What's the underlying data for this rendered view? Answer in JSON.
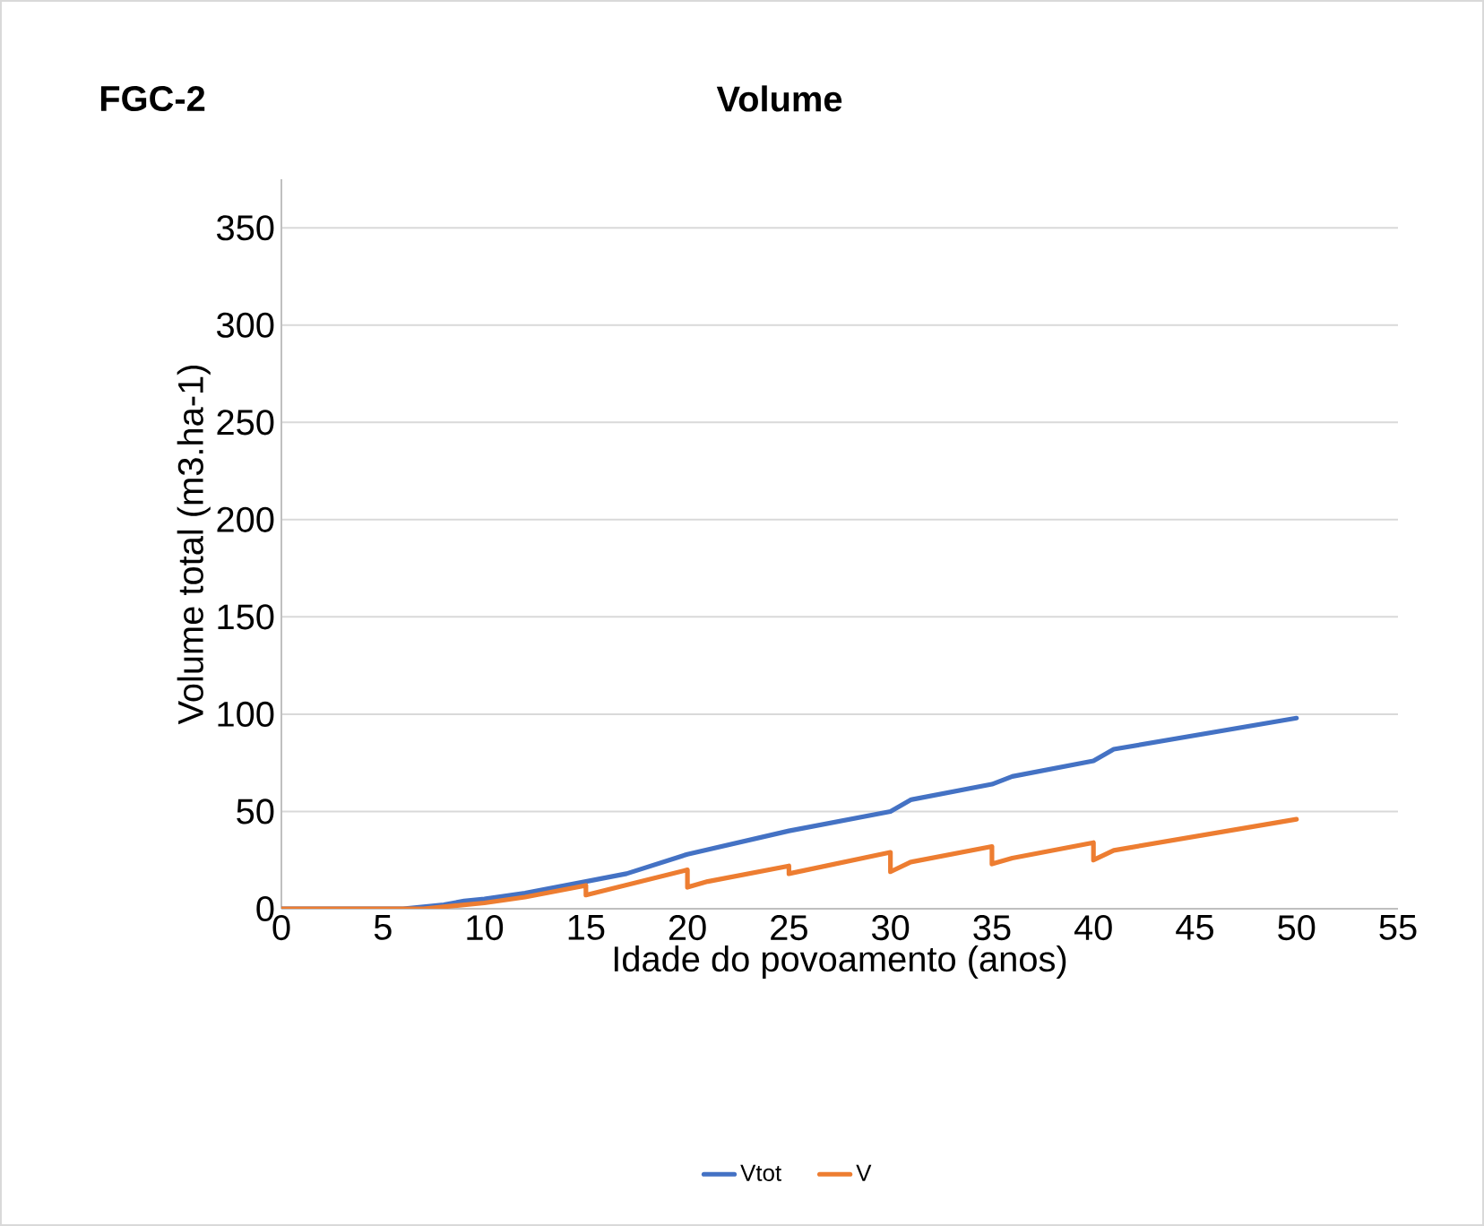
{
  "chart_data": {
    "type": "line",
    "title": "Volume",
    "annotations": [
      "FGC-2"
    ],
    "xlabel": "Idade do povoamento (anos)",
    "ylabel": "Volume total (m3.ha-1)",
    "xlim": [
      0,
      55
    ],
    "xticks": [
      0,
      5,
      10,
      15,
      20,
      25,
      30,
      35,
      40,
      45,
      50,
      55
    ],
    "ylim": [
      0,
      375
    ],
    "yticks": [
      0,
      50,
      100,
      150,
      200,
      250,
      300,
      350
    ],
    "grid": "y",
    "legend": "bottom",
    "marker": "none",
    "line_style": "solid",
    "series": [
      {
        "name": "Vtot",
        "color": "#4472c4",
        "x": [
          0,
          6,
          8,
          9,
          10,
          12,
          15,
          17,
          20,
          25,
          30,
          31,
          35,
          36,
          40,
          41,
          50
        ],
        "values": [
          0,
          0,
          2,
          4,
          5,
          8,
          14,
          18,
          28,
          40,
          50,
          56,
          64,
          68,
          76,
          82,
          98
        ]
      },
      {
        "name": "V",
        "color": "#ed7d31",
        "x": [
          0,
          7,
          8,
          10,
          12,
          15,
          15,
          20,
          20,
          21,
          25,
          25,
          30,
          30,
          31,
          35,
          35,
          36,
          40,
          40,
          41,
          50
        ],
        "values": [
          0,
          0,
          1,
          3,
          6,
          12,
          7,
          20,
          11,
          14,
          22,
          18,
          29,
          19,
          24,
          32,
          23,
          26,
          34,
          25,
          30,
          46
        ]
      }
    ]
  }
}
